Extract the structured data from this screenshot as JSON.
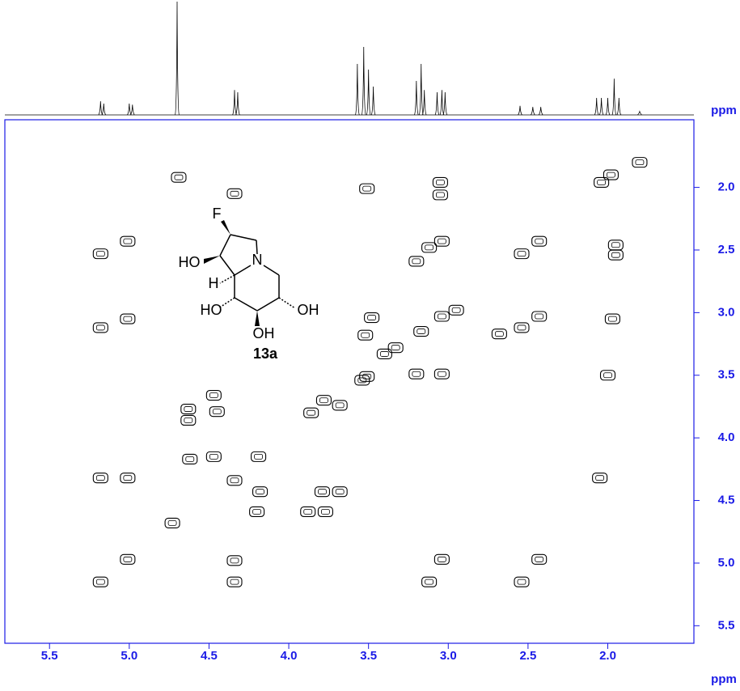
{
  "chart_data": {
    "type": "scatter",
    "x_label": "ppm",
    "y_label": "ppm",
    "xlim": [
      5.78,
      1.46
    ],
    "ylim": [
      1.46,
      5.64
    ],
    "xticks": [
      5.5,
      {
        "value": 5,
        "label": "5.0"
      },
      4.5,
      {
        "value": 4,
        "label": "4.0"
      },
      3.5,
      {
        "value": 3,
        "label": "3.0"
      },
      2.5,
      {
        "value": 2,
        "label": "2.0"
      }
    ],
    "yticks": [
      {
        "value": 2,
        "label": "2.0"
      },
      2.5,
      {
        "value": 3,
        "label": "3.0"
      },
      3.5,
      {
        "value": 4,
        "label": "4.0"
      },
      4.5,
      {
        "value": 5,
        "label": "5.0"
      },
      5.5
    ],
    "color": "#000000",
    "frame_color": "#1a1ae6",
    "x": [
      1.8,
      2.04,
      1.98,
      2.43,
      2.54,
      3.04,
      3.17,
      3.51,
      3.78,
      3.86,
      4.34,
      4.73,
      5.01,
      5.18,
      4.34,
      4.69,
      5.18,
      5.01,
      5.18,
      5.01,
      4.63,
      4.63,
      4.47,
      4.45,
      4.62,
      4.47,
      4.19,
      5.18,
      5.01,
      4.18,
      4.2,
      3.79,
      3.68,
      3.88,
      3.77,
      4.34,
      4.34,
      3.51,
      3.48,
      3.52,
      3.05,
      3.05,
      3.04,
      3.12,
      3.2,
      3.04,
      3.2,
      3.04,
      3.12,
      2.43,
      2.54,
      2.68,
      2.43,
      2.54,
      1.97,
      2.0,
      2.05,
      1.95,
      1.95,
      3.4,
      3.33,
      2.95,
      3.68,
      3.54
    ],
    "values": [
      1.8,
      1.96,
      1.9,
      2.43,
      2.53,
      3.03,
      3.15,
      3.51,
      3.7,
      3.8,
      4.34,
      4.68,
      4.97,
      5.15,
      2.05,
      1.92,
      2.53,
      2.43,
      3.12,
      3.05,
      3.77,
      3.86,
      3.66,
      3.79,
      4.17,
      4.15,
      4.15,
      4.32,
      4.32,
      4.43,
      4.59,
      4.43,
      4.43,
      4.59,
      4.59,
      4.98,
      5.15,
      2.01,
      3.04,
      3.18,
      1.96,
      2.06,
      2.43,
      2.48,
      2.59,
      3.49,
      3.49,
      4.97,
      5.15,
      3.03,
      3.12,
      3.17,
      4.97,
      5.15,
      3.05,
      3.5,
      4.32,
      2.46,
      2.54,
      3.33,
      3.28,
      2.98,
      3.74,
      3.54
    ],
    "projection": {
      "x": [
        5.18,
        5.16,
        5.0,
        4.98,
        4.7,
        4.34,
        4.32,
        3.57,
        3.53,
        3.5,
        3.47,
        3.2,
        3.17,
        3.15,
        3.07,
        3.04,
        3.02,
        2.55,
        2.47,
        2.42,
        2.07,
        2.04,
        2.0,
        1.96,
        1.93,
        1.8
      ],
      "values": [
        12,
        10,
        10,
        9,
        100,
        22,
        20,
        45,
        60,
        40,
        25,
        30,
        45,
        22,
        20,
        22,
        20,
        8,
        7,
        7,
        15,
        15,
        15,
        32,
        15,
        3
      ]
    },
    "annotations": [
      "F",
      "HO",
      "N",
      "H",
      "HO",
      "OH",
      "OH",
      "13a"
    ]
  }
}
